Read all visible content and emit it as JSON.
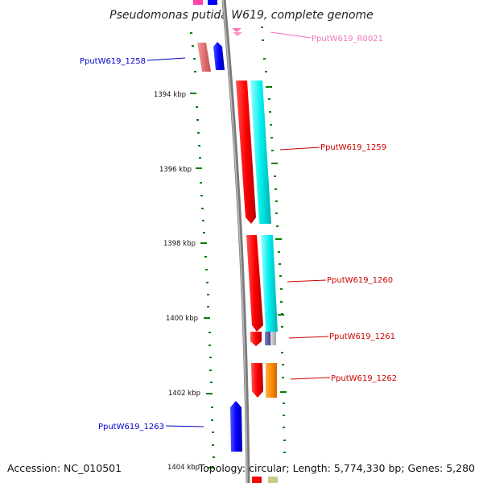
{
  "title": "Pseudomonas putida W619, complete genome",
  "footer": {
    "accession": "Accession: NC_010501",
    "summary": "Topology: circular; Length: 5,774,330 bp; Genes: 5,280"
  },
  "colors": {
    "forward_cds": "#ff0000",
    "reverse_cds": "#0000ff",
    "rna": "#ff88cc",
    "backbone": "#888888",
    "tick": "#008000",
    "cyan_track": "#00e5e5",
    "orange_track": "#ff8c00",
    "label_forward": "#cc0000",
    "label_reverse": "#0000cc",
    "label_rna": "#ee77bb"
  },
  "ticks": [
    "1394 kbp",
    "1396 kbp",
    "1398 kbp",
    "1400 kbp",
    "1402 kbp",
    "1404 kbp"
  ],
  "labels": {
    "r0021": "PputW619_R0021",
    "g1258": "PputW619_1258",
    "g1259": "PputW619_1259",
    "g1260": "PputW619_1260",
    "g1261": "PputW619_1261",
    "g1262": "PputW619_1262",
    "g1263": "PputW619_1263"
  }
}
